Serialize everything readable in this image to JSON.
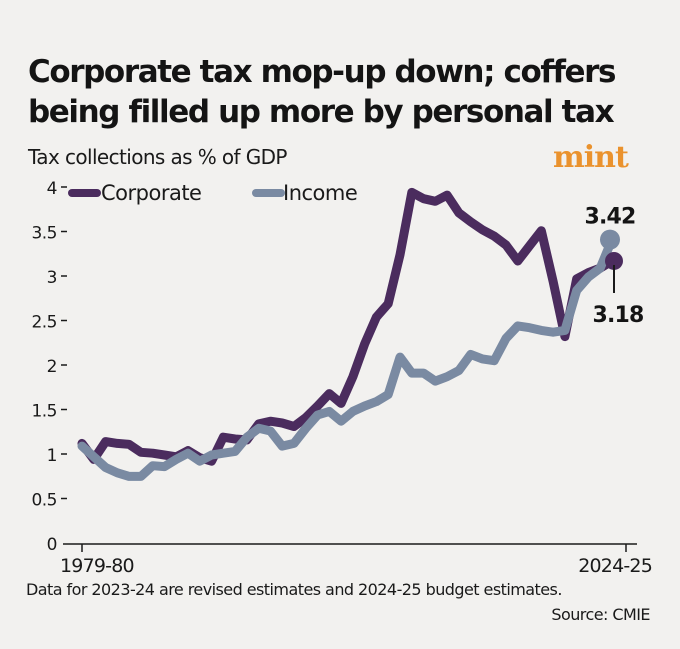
{
  "header": {
    "title": "Corporate tax mop-up down; coffers being filled up more by personal tax",
    "subtitle": "Tax collections as % of GDP",
    "logo": "mint"
  },
  "footer": {
    "note": "Data for 2023-24 are revised estimates and 2024-25 budget estimates.",
    "source": "Source: CMIE"
  },
  "colors": {
    "corporate": "#4b2c5e",
    "income": "#7a8aa2",
    "logo": "#ea922d",
    "background": "#f2f1ef"
  },
  "chart_data": {
    "type": "line",
    "title": "Corporate tax mop-up down; coffers being filled up more by personal tax",
    "subtitle": "Tax collections as % of GDP",
    "xlabel": "",
    "ylabel": "",
    "x_start_label": "1979-80",
    "x_end_label": "2024-25",
    "x_tick_labels": [
      "1979-80",
      "2024-25"
    ],
    "x": [
      "1979-80",
      "1980-81",
      "1981-82",
      "1982-83",
      "1983-84",
      "1984-85",
      "1985-86",
      "1986-87",
      "1987-88",
      "1988-89",
      "1989-90",
      "1990-91",
      "1991-92",
      "1992-93",
      "1993-94",
      "1994-95",
      "1995-96",
      "1996-97",
      "1997-98",
      "1998-99",
      "1999-00",
      "2000-01",
      "2001-02",
      "2002-03",
      "2003-04",
      "2004-05",
      "2005-06",
      "2006-07",
      "2007-08",
      "2008-09",
      "2009-10",
      "2010-11",
      "2011-12",
      "2012-13",
      "2013-14",
      "2014-15",
      "2015-16",
      "2016-17",
      "2017-18",
      "2018-19",
      "2019-20",
      "2020-21",
      "2021-22",
      "2022-23",
      "2023-24",
      "2024-25"
    ],
    "ylim": [
      0,
      4
    ],
    "y_ticks": [
      0,
      0.5,
      1,
      1.5,
      2,
      2.5,
      3,
      3.5,
      4
    ],
    "y_tick_labels": [
      "0",
      "0.5",
      "1",
      "1.5",
      "2",
      "2.5",
      "3",
      "3.5",
      "4"
    ],
    "grid": false,
    "legend": {
      "placement": "top-left",
      "entries": [
        "Corporate",
        "Income"
      ]
    },
    "series": [
      {
        "name": "Corporate",
        "values": [
          1.13,
          0.95,
          1.15,
          1.13,
          1.12,
          1.03,
          1.02,
          1.0,
          0.98,
          1.05,
          0.97,
          0.93,
          1.2,
          1.18,
          1.17,
          1.35,
          1.38,
          1.36,
          1.32,
          1.42,
          1.55,
          1.69,
          1.58,
          1.88,
          2.25,
          2.55,
          2.7,
          3.25,
          3.95,
          3.88,
          3.85,
          3.92,
          3.72,
          3.62,
          3.53,
          3.46,
          3.36,
          3.18,
          3.35,
          3.52,
          2.95,
          2.33,
          2.98,
          3.05,
          3.1,
          3.18
        ]
      },
      {
        "name": "Income",
        "values": [
          1.1,
          0.98,
          0.86,
          0.8,
          0.76,
          0.76,
          0.88,
          0.87,
          0.95,
          1.02,
          0.93,
          1.0,
          1.02,
          1.04,
          1.2,
          1.3,
          1.27,
          1.1,
          1.13,
          1.3,
          1.45,
          1.49,
          1.38,
          1.49,
          1.55,
          1.6,
          1.68,
          2.1,
          1.92,
          1.92,
          1.83,
          1.88,
          1.95,
          2.13,
          2.08,
          2.06,
          2.31,
          2.45,
          2.43,
          2.4,
          2.38,
          2.4,
          2.85,
          3.0,
          3.1,
          3.42
        ]
      }
    ],
    "annotations": [
      {
        "series": "Income",
        "x": "2024-25",
        "text": "3.42"
      },
      {
        "series": "Corporate",
        "x": "2024-25",
        "text": "3.18"
      }
    ],
    "notes": "Data for 2023-24 are revised estimates and 2024-25 budget estimates.",
    "source": "Source: CMIE"
  }
}
